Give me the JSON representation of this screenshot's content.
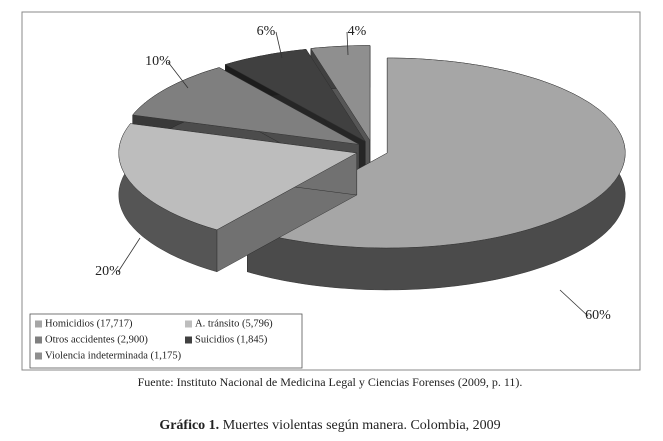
{
  "chart_data": {
    "type": "pie3d",
    "figure_label": "Gráfico 1.",
    "title": "Muertes violentas según manera. Colombia, 2009",
    "source": "Fuente: Instituto Nacional de Medicina Legal y Ciencias Forenses (2009, p. 11).",
    "categories": [
      "Homicidios (17,717)",
      "A. tránsito (5,796)",
      "Otros accidentes (2,900)",
      "Suicidios (1,845)",
      "Violencia indeterminada (1,175)"
    ],
    "values": [
      60,
      20,
      10,
      6,
      4
    ],
    "value_labels": [
      "60%",
      "20%",
      "10%",
      "6%",
      "4%"
    ],
    "colors": [
      "#a6a6a6",
      "#bdbdbd",
      "#7f7f7f",
      "#404040",
      "#8f8f8f"
    ]
  }
}
